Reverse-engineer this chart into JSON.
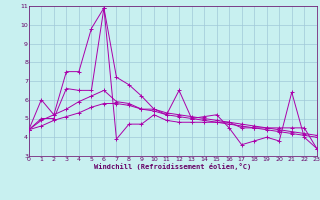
{
  "bg_color": "#c8f0f0",
  "grid_color": "#a0c8d8",
  "line_color": "#aa00aa",
  "xlabel": "Windchill (Refroidissement éolien,°C)",
  "tick_color": "#660066",
  "xlim": [
    0,
    23
  ],
  "ylim": [
    3,
    11
  ],
  "yticks": [
    3,
    4,
    5,
    6,
    7,
    8,
    9,
    10,
    11
  ],
  "xticks": [
    0,
    1,
    2,
    3,
    4,
    5,
    6,
    7,
    8,
    9,
    10,
    11,
    12,
    13,
    14,
    15,
    16,
    17,
    18,
    19,
    20,
    21,
    22,
    23
  ],
  "series": [
    [
      4.4,
      6.0,
      5.2,
      7.5,
      7.5,
      9.8,
      10.9,
      7.2,
      6.8,
      6.2,
      5.5,
      5.2,
      6.5,
      5.0,
      5.1,
      5.2,
      4.5,
      3.6,
      3.8,
      4.0,
      3.8,
      6.4,
      4.0,
      3.4
    ],
    [
      4.4,
      5.0,
      5.0,
      6.6,
      6.5,
      6.5,
      10.9,
      3.9,
      4.7,
      4.7,
      5.2,
      4.9,
      4.8,
      4.8,
      4.8,
      4.8,
      4.8,
      4.5,
      4.5,
      4.5,
      4.5,
      4.5,
      4.5,
      3.4
    ],
    [
      4.4,
      4.9,
      5.2,
      5.5,
      5.9,
      6.2,
      6.5,
      5.9,
      5.8,
      5.5,
      5.5,
      5.3,
      5.2,
      5.1,
      5.0,
      4.9,
      4.8,
      4.7,
      4.6,
      4.5,
      4.4,
      4.3,
      4.2,
      4.1
    ],
    [
      4.4,
      4.6,
      4.9,
      5.1,
      5.3,
      5.6,
      5.8,
      5.8,
      5.7,
      5.5,
      5.4,
      5.2,
      5.1,
      5.0,
      4.9,
      4.8,
      4.7,
      4.6,
      4.5,
      4.4,
      4.3,
      4.2,
      4.1,
      4.0
    ]
  ]
}
